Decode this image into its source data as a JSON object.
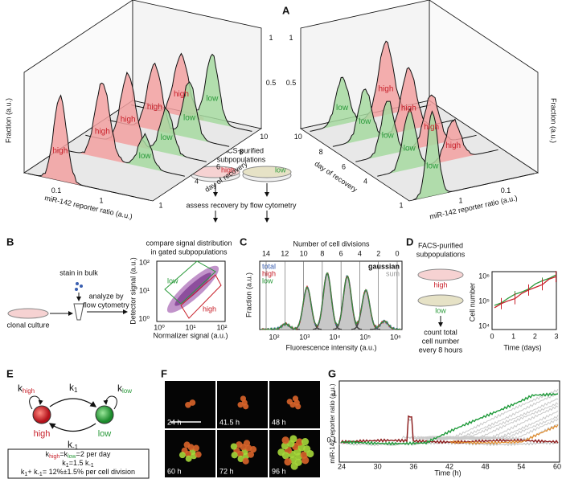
{
  "panel_a": {
    "label": "A",
    "left_plot": {
      "y_axis_title": "Fraction (a.u.)",
      "x_axis_title": "miR-142 reporter ratio (a.u.)",
      "x_ticks": [
        "0.1",
        "1"
      ],
      "y_ticks": [
        "0.5",
        "1"
      ],
      "depth_ticks": [
        "1",
        "4",
        "6",
        "8",
        "10"
      ],
      "depth_title": "day of recovery",
      "peak_labels": [
        "high",
        "high",
        "low",
        "high",
        "low",
        "high",
        "low",
        "high",
        "low"
      ]
    },
    "right_plot": {
      "y_axis_title": "Fraction (a.u.)",
      "x_axis_title": "miR-142 reporter ratio (a.u.)",
      "x_ticks": [
        "0.1",
        "1"
      ],
      "y_ticks": [
        "0.5",
        "1"
      ],
      "depth_ticks": [
        "1",
        "4",
        "6",
        "8",
        "10"
      ],
      "depth_title": "day of recovery",
      "peak_labels": [
        "low",
        "high",
        "low",
        "high",
        "low",
        "high",
        "low",
        "high",
        "low"
      ]
    },
    "middle": {
      "title_line1": "FACS-purified",
      "title_line2": "subpopulations",
      "dish_left": "high",
      "dish_right": "low",
      "caption": "assess recovery by flow cytometry"
    }
  },
  "panel_b": {
    "label": "B",
    "stain": "stain in bulk",
    "culture": "clonal culture",
    "analyze_line1": "analyze by",
    "analyze_line2": "flow cytometry",
    "compare_line1": "compare signal distribution",
    "compare_line2": "in gated subpopulations",
    "y_axis_title": "Detector signal (a.u.)",
    "x_axis_title": "Normalizer signal (a.u.)",
    "y_ticks": [
      "10²",
      "10¹",
      "10⁰"
    ],
    "x_ticks": [
      "10⁰",
      "10¹",
      "10²"
    ],
    "gate_low": "low",
    "gate_high": "high"
  },
  "panel_c": {
    "label": "C",
    "top_title": "Number of cell divisions",
    "top_ticks": [
      "14",
      "12",
      "10",
      "8",
      "6",
      "4",
      "2",
      "0"
    ],
    "legend": [
      "total",
      "high",
      "low"
    ],
    "legend_right": [
      "gaussian",
      "sum"
    ],
    "y_axis_title": "Fraction (a.u.)",
    "x_axis_title": "Fluorescence intensity (a.u.)",
    "x_ticks": [
      "10²",
      "10³",
      "10⁴",
      "10⁵",
      "10⁶"
    ]
  },
  "panel_d": {
    "label": "D",
    "title_line1": "FACS-purified",
    "title_line2": "subpopulations",
    "dish_top": "high",
    "dish_bottom": "low",
    "count_line1": "count total",
    "count_line2": "cell number",
    "count_line3": "every 8 hours",
    "legend": [
      "high",
      "low"
    ],
    "y_axis_title": "Cell number",
    "y_ticks": [
      "10⁶",
      "10⁵",
      "10⁴"
    ],
    "x_ticks": [
      "0",
      "1",
      "2",
      "3"
    ],
    "x_axis_title": "Time (days)"
  },
  "panel_e": {
    "label": "E",
    "k_high": {
      "symbol": "k",
      "subscript": "high"
    },
    "k_low": {
      "symbol": "k",
      "subscript": "low"
    },
    "k_1": {
      "symbol": "k",
      "subscript": "1"
    },
    "k_minus1": {
      "symbol": "k",
      "subscript": "-1"
    },
    "state_high": "high",
    "state_low": "low",
    "eq1": [
      "k",
      "high",
      "=k",
      "low",
      "=2 per day"
    ],
    "eq2": [
      "k",
      "1",
      "=1.5 k",
      "-1"
    ],
    "eq3": [
      "k",
      "1",
      "+ k",
      "-1",
      "= 12%±1.5% per cell division"
    ]
  },
  "panel_f": {
    "label": "F",
    "timepoints": [
      "24 h",
      "41.5 h",
      "48 h",
      "60 h",
      "72 h",
      "96 h"
    ]
  },
  "panel_g": {
    "label": "G",
    "y_axis_title": "miR-142 reporter ratio (a.u.)",
    "y_ticks": [
      "1",
      "0.1"
    ],
    "x_ticks": [
      "24",
      "30",
      "36",
      "42",
      "48",
      "54",
      "60"
    ],
    "x_axis_title": "Time (h)"
  }
}
